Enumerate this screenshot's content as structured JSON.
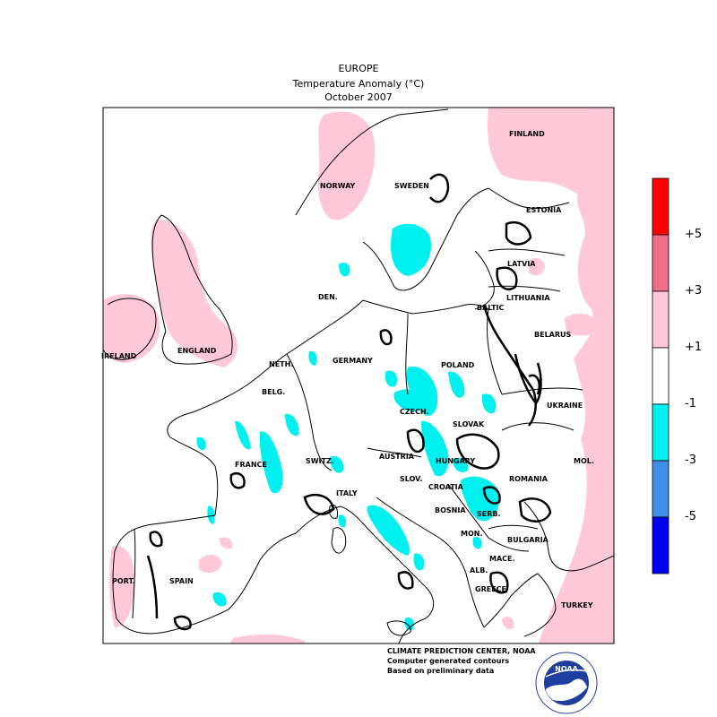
{
  "header": {
    "region": "EUROPE",
    "variable": "Temperature Anomaly (°C)",
    "period": "October 2007"
  },
  "map": {
    "countries": [
      "FINLAND",
      "NORWAY",
      "SWEDEN",
      "ESTONIA",
      "LATVIA",
      "LITHUANIA",
      "DEN.",
      "BALTIC",
      "BELARUS",
      "IRELAND",
      "ENGLAND",
      "NETH.",
      "GERMANY",
      "POLAND",
      "BELG.",
      "UKRAINE",
      "CZECH.",
      "SLOVAK",
      "FRANCE",
      "SWITZ.",
      "AUSTRIA",
      "HUNGARY",
      "MOL.",
      "SLOV.",
      "CROATIA",
      "ROMANIA",
      "ITALY",
      "BOSNIA",
      "SERB.",
      "MON.",
      "BULGARIA",
      "MACE.",
      "ALB.",
      "PORT.",
      "SPAIN",
      "GREECE",
      "TURKEY"
    ]
  },
  "legend": {
    "colors": [
      "#ff0000",
      "#ee6f8c",
      "#ffc8d8",
      "#ffffff",
      "#00f0f0",
      "#3f8fe6",
      "#0000f0"
    ],
    "labels": [
      "+5",
      "+3",
      "+1",
      "-1",
      "-3",
      "-5"
    ]
  },
  "credits": {
    "line1": "CLIMATE PREDICTION CENTER, NOAA",
    "line2": "Computer generated contours",
    "line3": "Based on preliminary data"
  },
  "logo": {
    "text": "NOAA",
    "icon": "noaa-logo-icon"
  }
}
